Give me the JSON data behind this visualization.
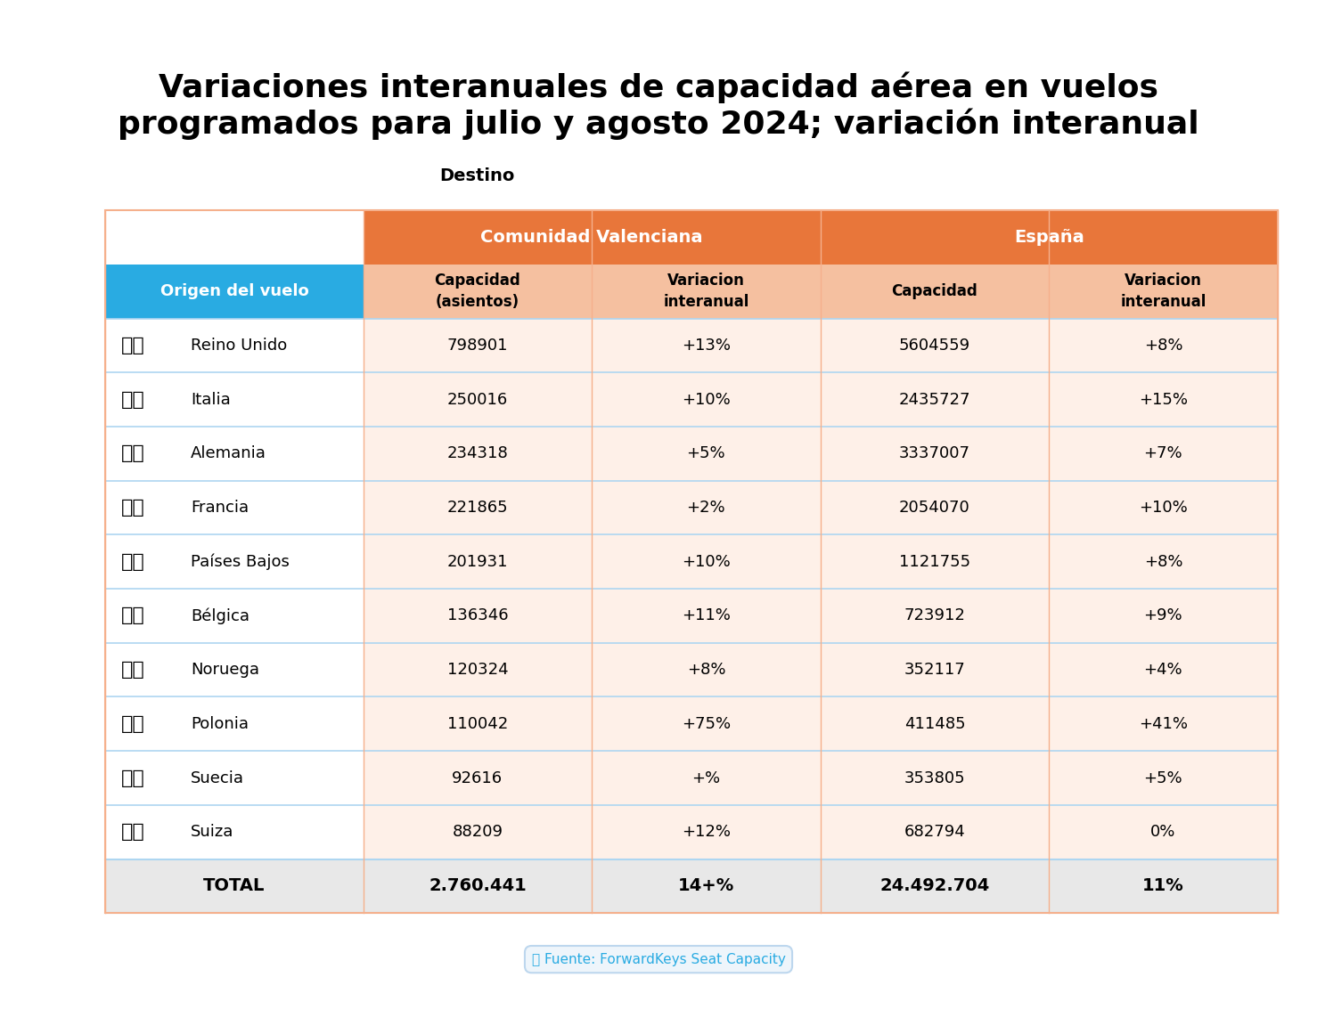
{
  "title": "Variaciones interanuales de capacidad aérea en vuelos\nprogramados para julio y agosto 2024; variación interanual",
  "destino_label": "Destino",
  "col_header_cv": "Comunidad Valenciana",
  "col_header_es": "España",
  "subheaders": [
    "Capacidad\n(asientos)",
    "Variacion\ninteranual",
    "Capacidad",
    "Variacion\ninteranual"
  ],
  "row_header": "Origen del vuelo",
  "countries": [
    "Reino Unido",
    "Italia",
    "Alemania",
    "Francia",
    "Países Bajos",
    "Bélgica",
    "Noruega",
    "Polonia",
    "Suecia",
    "Suiza"
  ],
  "cv_capacidad": [
    "798901",
    "250016",
    "234318",
    "221865",
    "201931",
    "136346",
    "120324",
    "110042",
    "92616",
    "88209"
  ],
  "cv_variacion": [
    "+13%",
    "+10%",
    "+5%",
    "+2%",
    "+10%",
    "+11%",
    "+8%",
    "+75%",
    "+%",
    "+12%"
  ],
  "es_capacidad": [
    "5604559",
    "2435727",
    "3337007",
    "2054070",
    "1121755",
    "723912",
    "352117",
    "411485",
    "353805",
    "682794"
  ],
  "es_variacion": [
    "+8%",
    "+15%",
    "+7%",
    "+10%",
    "+8%",
    "+9%",
    "+4%",
    "+41%",
    "+5%",
    "0%"
  ],
  "total_row": [
    "TOTAL",
    "2.760.441",
    "14+%",
    "24.492.704",
    "11%"
  ],
  "fuente": "Fuente: ForwardKeys Seat Capacity",
  "color_orange": "#E8763A",
  "color_orange_light": "#F5C0A0",
  "color_blue_header": "#29ABE2",
  "color_blue_row": "#ADDFF0",
  "color_white": "#FFFFFF",
  "color_total_bg": "#E8E8E8",
  "color_row_odd": "#FFFFFF",
  "color_row_even": "#FAF0EC",
  "bg_color": "#FFFFFF"
}
